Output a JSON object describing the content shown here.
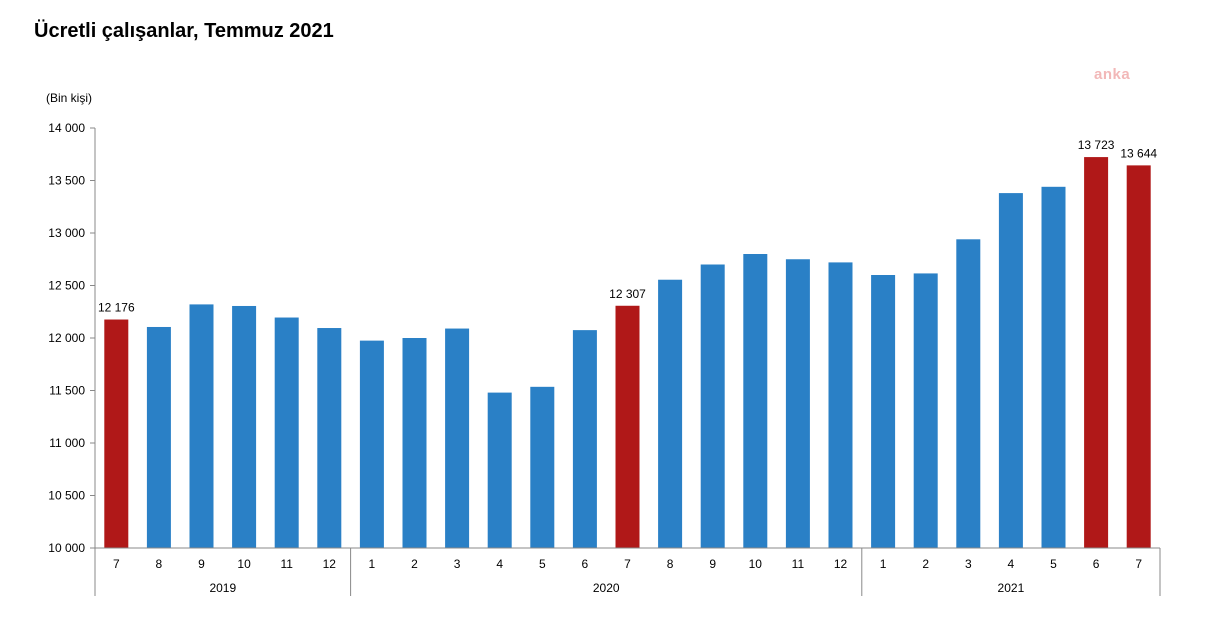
{
  "chart_data": {
    "type": "bar",
    "title": "Ücretli çalışanlar, Temmuz 2021",
    "ylabel": "(Bin kişi)",
    "ylim": [
      10000,
      14000
    ],
    "yticks": [
      "10 000",
      "10 500",
      "11 000",
      "11 500",
      "12 000",
      "12 500",
      "13 000",
      "13 500",
      "14 000"
    ],
    "grid": false,
    "categories": [
      "7",
      "8",
      "9",
      "10",
      "11",
      "12",
      "1",
      "2",
      "3",
      "4",
      "5",
      "6",
      "7",
      "8",
      "9",
      "10",
      "11",
      "12",
      "1",
      "2",
      "3",
      "4",
      "5",
      "6",
      "7"
    ],
    "year_groups": [
      {
        "label": "2019",
        "count": 6
      },
      {
        "label": "2020",
        "count": 12
      },
      {
        "label": "2021",
        "count": 7
      }
    ],
    "values": [
      12176,
      12105,
      12320,
      12305,
      12195,
      12095,
      11975,
      12000,
      12090,
      11480,
      11535,
      12075,
      12307,
      12555,
      12700,
      12800,
      12750,
      12720,
      12600,
      12615,
      12940,
      13380,
      13440,
      13723,
      13644
    ],
    "highlighted": [
      0,
      12,
      23,
      24
    ],
    "data_labels": {
      "0": "12 176",
      "12": "12 307",
      "23": "13 723",
      "24": "13 644"
    },
    "colors": {
      "normal": "#2A80C6",
      "highlight": "#B01818"
    }
  },
  "watermark": "anka"
}
